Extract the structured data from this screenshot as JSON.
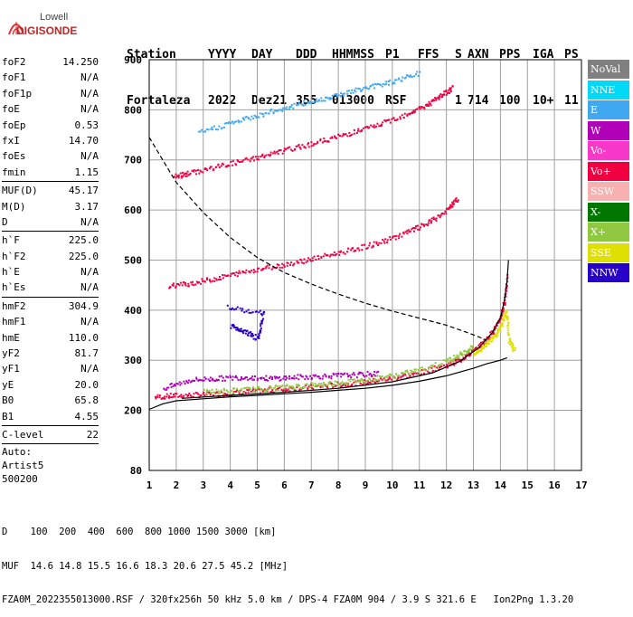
{
  "logo": {
    "line1": "Lowell",
    "line2": "DIGISONDE"
  },
  "header": {
    "labels": [
      "Station",
      "YYYY",
      "DAY",
      "DDD",
      "HHMMSS",
      "P1",
      "FFS",
      "S",
      "AXN",
      "PPS",
      "IGA",
      "PS"
    ],
    "values": [
      "Fortaleza",
      "2022",
      "Dez21",
      "355",
      "013000",
      "RSF",
      "1",
      "714",
      "100",
      "10+",
      "11"
    ]
  },
  "params": {
    "group1": [
      {
        "label": "foF2",
        "value": "14.250"
      },
      {
        "label": "foF1",
        "value": "N/A"
      },
      {
        "label": "foF1p",
        "value": "N/A"
      },
      {
        "label": "foE",
        "value": "N/A"
      },
      {
        "label": "foEp",
        "value": "0.53"
      },
      {
        "label": "fxI",
        "value": "14.70"
      },
      {
        "label": "foEs",
        "value": "N/A"
      },
      {
        "label": "fmin",
        "value": "1.15"
      }
    ],
    "group2": [
      {
        "label": "MUF(D)",
        "value": "45.17"
      },
      {
        "label": "M(D)",
        "value": "3.17"
      },
      {
        "label": "D",
        "value": "N/A"
      }
    ],
    "group3": [
      {
        "label": "h`F",
        "value": "225.0"
      },
      {
        "label": "h`F2",
        "value": "225.0"
      },
      {
        "label": "h`E",
        "value": "N/A"
      },
      {
        "label": "h`Es",
        "value": "N/A"
      }
    ],
    "group4": [
      {
        "label": "hmF2",
        "value": "304.9"
      },
      {
        "label": "hmF1",
        "value": "N/A"
      },
      {
        "label": "hmE",
        "value": "110.0"
      },
      {
        "label": "yF2",
        "value": "81.7"
      },
      {
        "label": "yF1",
        "value": "N/A"
      },
      {
        "label": "yE",
        "value": "20.0"
      },
      {
        "label": "B0",
        "value": "65.8"
      },
      {
        "label": "B1",
        "value": "4.55"
      }
    ],
    "group5": [
      {
        "label": "C-level",
        "value": "22"
      }
    ],
    "auto": [
      "Auto:",
      "Artist5",
      "500200"
    ]
  },
  "legend": [
    {
      "label": "NoVal",
      "color": "#808080",
      "text": "#ffffff"
    },
    {
      "label": "NNE",
      "color": "#00d8f8",
      "text": "#ffffff"
    },
    {
      "label": "E",
      "color": "#40a8f0",
      "text": "#ffffff"
    },
    {
      "label": "W",
      "color": "#b000b8",
      "text": "#ffffff"
    },
    {
      "label": "Vo-",
      "color": "#f838c8",
      "text": "#ffffff"
    },
    {
      "label": "Vo+",
      "color": "#f00040",
      "text": "#ffffff"
    },
    {
      "label": "SSW",
      "color": "#f8b0b0",
      "text": "#ffffff"
    },
    {
      "label": "X-",
      "color": "#007800",
      "text": "#ffffff"
    },
    {
      "label": "X+",
      "color": "#90c840",
      "text": "#ffffff"
    },
    {
      "label": "SSE",
      "color": "#e0e000",
      "text": "#ffffff"
    },
    {
      "label": "NNW",
      "color": "#2800c8",
      "text": "#ffffff"
    }
  ],
  "footer": {
    "line1": "D    100  200  400  600  800 1000 1500 3000 [km]",
    "line2": "MUF  14.6 14.8 15.5 16.6 18.3 20.6 27.5 45.2 [MHz]",
    "line3": "FZA0M_2022355013000.RSF / 320fx256h 50 kHz 5.0 km / DPS-4 FZA0M 904 / 3.9 S 321.6 E   Ion2Png 1.3.20"
  },
  "chart_data": {
    "type": "scatter",
    "xlim": [
      1,
      17
    ],
    "ylim": [
      80,
      900
    ],
    "x_ticks": [
      1,
      2,
      3,
      4,
      5,
      6,
      7,
      8,
      9,
      10,
      11,
      12,
      13,
      14,
      15,
      16,
      17
    ],
    "y_ticks": [
      80,
      200,
      300,
      400,
      500,
      600,
      700,
      800,
      900
    ],
    "grid": true,
    "traces": [
      {
        "name": "O-trace F2",
        "color": "#f00040",
        "points": [
          [
            1.2,
            228
          ],
          [
            2,
            231
          ],
          [
            3,
            233
          ],
          [
            4,
            236
          ],
          [
            5,
            240
          ],
          [
            6,
            244
          ],
          [
            7,
            248
          ],
          [
            8,
            253
          ],
          [
            9,
            258
          ],
          [
            10,
            266
          ],
          [
            11,
            276
          ],
          [
            12,
            292
          ],
          [
            12.5,
            303
          ],
          [
            13,
            320
          ],
          [
            13.5,
            345
          ],
          [
            13.9,
            375
          ],
          [
            14.1,
            410
          ],
          [
            14.25,
            470
          ]
        ]
      },
      {
        "name": "X-trace F2",
        "color": "#90c840",
        "points": [
          [
            3,
            238
          ],
          [
            4,
            241
          ],
          [
            5,
            244
          ],
          [
            6,
            248
          ],
          [
            7,
            252
          ],
          [
            8,
            257
          ],
          [
            9,
            263
          ],
          [
            10,
            271
          ],
          [
            11,
            282
          ],
          [
            12,
            300
          ],
          [
            12.5,
            313
          ],
          [
            13,
            330
          ]
        ]
      },
      {
        "name": "Spread F",
        "color": "#b000b8",
        "points": [
          [
            1.5,
            245
          ],
          [
            2.5,
            262
          ],
          [
            3.5,
            265
          ],
          [
            4.5,
            268
          ],
          [
            5.5,
            265
          ],
          [
            6.5,
            268
          ],
          [
            7.5,
            270
          ],
          [
            8.5,
            272
          ],
          [
            9.5,
            275
          ]
        ]
      },
      {
        "name": "2nd hop",
        "color": "#f00040",
        "points": [
          [
            1.7,
            450
          ],
          [
            2.5,
            455
          ],
          [
            3.5,
            465
          ],
          [
            4.5,
            478
          ],
          [
            5.5,
            488
          ],
          [
            6.5,
            498
          ],
          [
            7.5,
            510
          ],
          [
            8.5,
            522
          ],
          [
            9.5,
            536
          ],
          [
            10.5,
            556
          ],
          [
            11.3,
            575
          ],
          [
            12,
            600
          ],
          [
            12.4,
            625
          ]
        ]
      },
      {
        "name": "3rd hop",
        "color": "#f00040",
        "points": [
          [
            1.9,
            668
          ],
          [
            2.5,
            675
          ],
          [
            3.5,
            688
          ],
          [
            4.5,
            700
          ],
          [
            5.5,
            713
          ],
          [
            6.5,
            727
          ],
          [
            7.5,
            741
          ],
          [
            8.5,
            756
          ],
          [
            9.5,
            772
          ],
          [
            10.5,
            793
          ],
          [
            11.3,
            812
          ],
          [
            11.8,
            830
          ],
          [
            12.2,
            845
          ]
        ]
      },
      {
        "name": "E-dir 3rd",
        "color": "#40a8f0",
        "points": [
          [
            2.8,
            755
          ],
          [
            4,
            775
          ],
          [
            5,
            790
          ],
          [
            6,
            805
          ],
          [
            7,
            818
          ],
          [
            8,
            832
          ],
          [
            9,
            845
          ],
          [
            10,
            858
          ],
          [
            11,
            875
          ]
        ]
      },
      {
        "name": "SSE",
        "color": "#e0e000",
        "points": [
          [
            13,
            315
          ],
          [
            13.4,
            330
          ],
          [
            13.8,
            350
          ],
          [
            14,
            370
          ],
          [
            14.2,
            400
          ],
          [
            14.3,
            340
          ],
          [
            14.5,
            322
          ]
        ]
      },
      {
        "name": "NNW",
        "color": "#2800c8",
        "points": [
          [
            4,
            370
          ],
          [
            4.5,
            360
          ],
          [
            5,
            345
          ],
          [
            5.2,
            395
          ],
          [
            3.8,
            410
          ]
        ]
      }
    ],
    "curves": [
      {
        "name": "true height profile",
        "style": "solid",
        "points": [
          [
            1,
            202
          ],
          [
            1.5,
            213
          ],
          [
            2,
            219
          ],
          [
            3,
            223
          ],
          [
            4,
            227
          ],
          [
            5,
            230
          ],
          [
            6,
            233
          ],
          [
            7,
            236
          ],
          [
            8,
            240
          ],
          [
            9,
            244
          ],
          [
            10,
            250
          ],
          [
            11,
            258
          ],
          [
            12,
            269
          ],
          [
            13,
            284
          ],
          [
            13.5,
            293
          ],
          [
            14,
            300
          ],
          [
            14.25,
            305
          ]
        ]
      },
      {
        "name": "model trace",
        "style": "solid",
        "points": [
          [
            2.2,
            224
          ],
          [
            4,
            230
          ],
          [
            6,
            236
          ],
          [
            8,
            244
          ],
          [
            10,
            257
          ],
          [
            11.5,
            275
          ],
          [
            12.5,
            298
          ],
          [
            13.2,
            325
          ],
          [
            13.7,
            355
          ],
          [
            14,
            385
          ],
          [
            14.15,
            420
          ],
          [
            14.25,
            460
          ],
          [
            14.3,
            500
          ]
        ]
      },
      {
        "name": "MUF curve",
        "style": "dashed",
        "points": [
          [
            1,
            745
          ],
          [
            1.5,
            700
          ],
          [
            2,
            655
          ],
          [
            3,
            595
          ],
          [
            4,
            545
          ],
          [
            5,
            505
          ],
          [
            6,
            475
          ],
          [
            7,
            452
          ],
          [
            8,
            432
          ],
          [
            9,
            414
          ],
          [
            10,
            398
          ],
          [
            11,
            384
          ],
          [
            12,
            370
          ],
          [
            13,
            351
          ],
          [
            13.5,
            340
          ]
        ]
      }
    ]
  }
}
